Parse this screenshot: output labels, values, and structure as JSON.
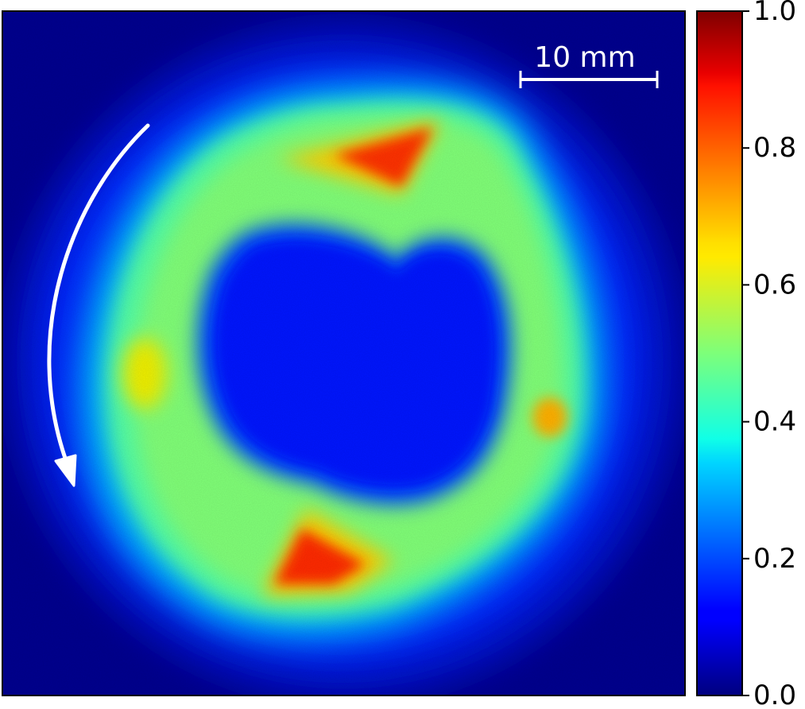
{
  "chart_data": {
    "type": "heatmap",
    "title": "",
    "xlabel": "",
    "ylabel": "",
    "colormap": "jet",
    "colorbar": {
      "range": [
        0.0,
        1.0
      ],
      "ticks": [
        0.0,
        0.2,
        0.4,
        0.6,
        0.8,
        1.0
      ],
      "tick_labels": [
        "0.0",
        "0.2",
        "0.4",
        "0.6",
        "0.8",
        "1.0"
      ]
    },
    "scale_bar": {
      "label": "10 mm",
      "length_mm": 10
    },
    "annotations": [
      {
        "kind": "curved-arrow",
        "color": "#ffffff",
        "direction": "counter-clockwise",
        "side": "left"
      }
    ],
    "features": [
      {
        "name": "ring",
        "value": 0.5
      },
      {
        "name": "upper hot spot",
        "value": 0.85
      },
      {
        "name": "lower-left hot spot",
        "value": 0.85
      },
      {
        "name": "left spot",
        "value": 0.65
      },
      {
        "name": "right spot",
        "value": 0.65
      },
      {
        "name": "central hole",
        "value": 0.12
      },
      {
        "name": "background",
        "value": 0.03
      }
    ],
    "colors": {
      "background": "#00008f",
      "scale_bar": "#ffffff",
      "arrow": "#ffffff"
    }
  }
}
